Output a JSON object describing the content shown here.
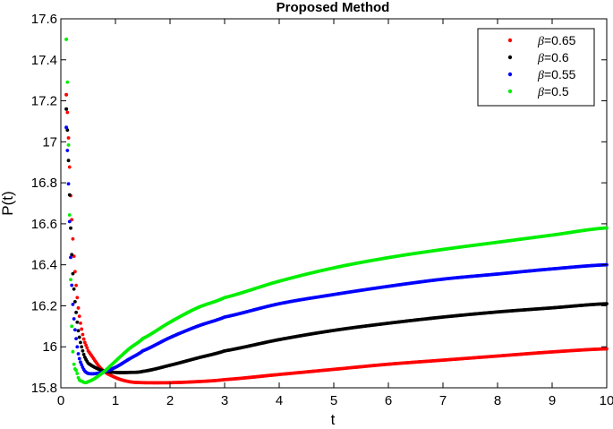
{
  "chart_data": {
    "type": "scatter",
    "title": "Proposed Method",
    "xlabel": "t",
    "ylabel": "P(t)",
    "xlim": [
      0,
      10
    ],
    "ylim": [
      15.8,
      17.6
    ],
    "xticks": [
      0,
      1,
      2,
      3,
      4,
      5,
      6,
      7,
      8,
      9,
      10
    ],
    "yticks": [
      15.8,
      16,
      16.2,
      16.4,
      16.6,
      16.8,
      17,
      17.2,
      17.4,
      17.6
    ],
    "ytick_labels": [
      "15.8",
      "16",
      "16.2",
      "16.4",
      "16.6",
      "16.8",
      "17",
      "17.2",
      "17.4",
      "17.6"
    ],
    "grid": false,
    "legend_position": "top-right",
    "legend_symbol": "β",
    "series": [
      {
        "name": "=0.65",
        "color": "#ff0000",
        "x": [
          0.1,
          0.2,
          0.3,
          0.4,
          0.5,
          0.75,
          1,
          1.25,
          1.5,
          2,
          2.5,
          3,
          4,
          5,
          6,
          7,
          8,
          9,
          10
        ],
        "y": [
          17.23,
          16.62,
          16.24,
          16.06,
          15.98,
          15.89,
          15.85,
          15.83,
          15.825,
          15.825,
          15.83,
          15.84,
          15.865,
          15.89,
          15.915,
          15.935,
          15.955,
          15.975,
          15.99
        ]
      },
      {
        "name": "=0.6",
        "color": "#000000",
        "x": [
          0.1,
          0.2,
          0.3,
          0.4,
          0.5,
          0.75,
          1,
          1.25,
          1.5,
          2,
          2.5,
          3,
          4,
          5,
          6,
          7,
          8,
          9,
          10
        ],
        "y": [
          17.16,
          16.45,
          16.12,
          15.98,
          15.92,
          15.885,
          15.875,
          15.875,
          15.88,
          15.91,
          15.945,
          15.98,
          16.035,
          16.08,
          16.115,
          16.145,
          16.17,
          16.19,
          16.21
        ]
      },
      {
        "name": "=0.55",
        "color": "#0000ff",
        "x": [
          0.1,
          0.2,
          0.3,
          0.4,
          0.5,
          0.75,
          1,
          1.25,
          1.5,
          2,
          2.5,
          3,
          4,
          5,
          6,
          7,
          8,
          9,
          10
        ],
        "y": [
          17.07,
          16.3,
          16.0,
          15.9,
          15.87,
          15.875,
          15.9,
          15.94,
          15.98,
          16.045,
          16.1,
          16.145,
          16.21,
          16.255,
          16.295,
          16.33,
          16.355,
          16.38,
          16.4
        ]
      },
      {
        "name": "=0.5",
        "color": "#00ee00",
        "x": [
          0.1,
          0.2,
          0.3,
          0.4,
          0.5,
          0.75,
          1,
          1.25,
          1.5,
          2,
          2.5,
          3,
          4,
          5,
          6,
          7,
          8,
          9,
          10
        ],
        "y": [
          17.5,
          16.1,
          15.87,
          15.83,
          15.83,
          15.87,
          15.93,
          15.99,
          16.04,
          16.12,
          16.19,
          16.24,
          16.32,
          16.385,
          16.435,
          16.475,
          16.51,
          16.545,
          16.58
        ]
      }
    ]
  }
}
